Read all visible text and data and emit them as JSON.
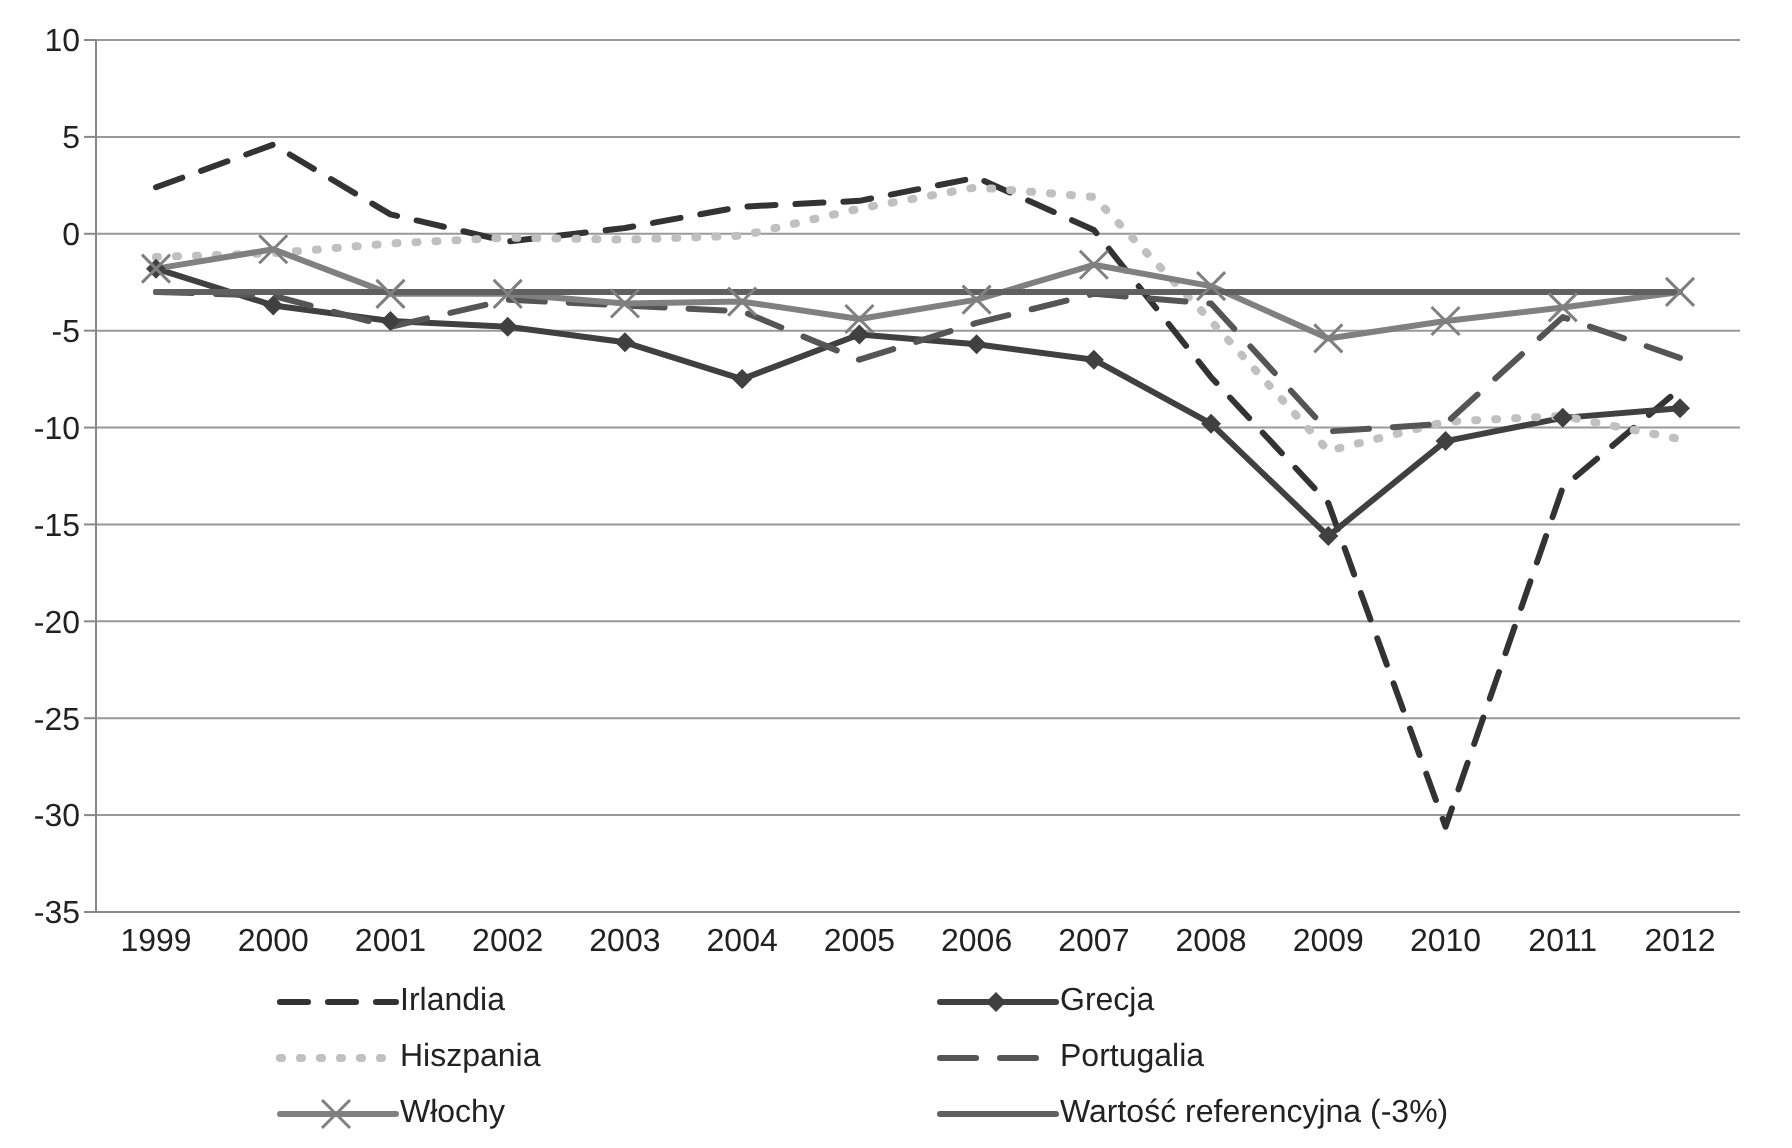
{
  "chart_data": {
    "type": "line",
    "categories": [
      "1999",
      "2000",
      "2001",
      "2002",
      "2003",
      "2004",
      "2005",
      "2006",
      "2007",
      "2008",
      "2009",
      "2010",
      "2011",
      "2012"
    ],
    "series": [
      {
        "name": "Irlandia",
        "color": "#333333",
        "line_style": "dashed",
        "marker": "none",
        "values": [
          2.4,
          4.6,
          1.0,
          -0.4,
          0.3,
          1.4,
          1.7,
          2.9,
          0.2,
          -7.4,
          -13.9,
          -30.6,
          -13.1,
          -8.0
        ]
      },
      {
        "name": "Grecja",
        "color": "#404040",
        "line_style": "solid",
        "marker": "diamond",
        "values": [
          -1.8,
          -3.7,
          -4.5,
          -4.8,
          -5.6,
          -7.5,
          -5.2,
          -5.7,
          -6.5,
          -9.8,
          -15.6,
          -10.7,
          -9.5,
          -9.0
        ]
      },
      {
        "name": "Hiszpania",
        "color": "#c0c0c0",
        "line_style": "dotted",
        "marker": "none",
        "values": [
          -1.2,
          -1.0,
          -0.5,
          -0.2,
          -0.3,
          -0.1,
          1.3,
          2.4,
          1.9,
          -4.5,
          -11.2,
          -9.7,
          -9.4,
          -10.6
        ]
      },
      {
        "name": "Portugalia",
        "color": "#555555",
        "line_style": "dashed",
        "marker": "none",
        "values": [
          -3.0,
          -3.2,
          -4.8,
          -3.4,
          -3.7,
          -4.0,
          -6.5,
          -4.6,
          -3.1,
          -3.6,
          -10.2,
          -9.8,
          -4.3,
          -6.4
        ]
      },
      {
        "name": "Włochy",
        "color": "#808080",
        "line_style": "solid",
        "marker": "cross",
        "values": [
          -1.8,
          -0.8,
          -3.1,
          -3.1,
          -3.6,
          -3.5,
          -4.4,
          -3.4,
          -1.6,
          -2.7,
          -5.4,
          -4.5,
          -3.8,
          -3.0
        ]
      },
      {
        "name": "Wartość referencyjna (-3%)",
        "color": "#606060",
        "line_style": "solid",
        "marker": "none",
        "values": [
          -3,
          -3,
          -3,
          -3,
          -3,
          -3,
          -3,
          -3,
          -3,
          -3,
          -3,
          -3,
          -3,
          -3
        ]
      }
    ],
    "ylim": [
      -35,
      10
    ],
    "yticks": [
      -35,
      -30,
      -25,
      -20,
      -15,
      -10,
      -5,
      0,
      5,
      10
    ],
    "grid": "y",
    "legend": "bottom"
  }
}
